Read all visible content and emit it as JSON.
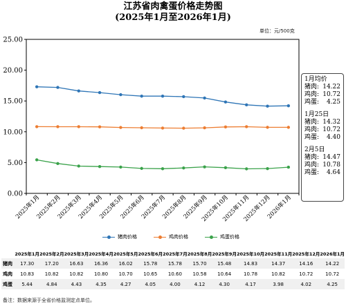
{
  "page": {
    "title_line1": "江苏省肉禽蛋价格走势图",
    "title_line2": "(2025年1月至2026年1月)",
    "unit": "单位：元/500克",
    "footnote": "备注：数据来源于全省价格监测定点单位。"
  },
  "sidebox": {
    "groups": [
      {
        "heading": "1月均价",
        "rows": [
          {
            "label": "猪肉:",
            "value": "14.22"
          },
          {
            "label": "鸡肉:",
            "value": "10.72"
          },
          {
            "label": "鸡蛋:",
            "value": "4.25"
          }
        ]
      },
      {
        "heading": "1月25日",
        "rows": [
          {
            "label": "猪肉:",
            "value": "14.32"
          },
          {
            "label": "鸡肉:",
            "value": "10.72"
          },
          {
            "label": "鸡蛋:",
            "value": "4.40"
          }
        ]
      },
      {
        "heading": "2月5日",
        "rows": [
          {
            "label": "猪肉:",
            "value": "14.47"
          },
          {
            "label": "鸡肉:",
            "value": "10.78"
          },
          {
            "label": "鸡蛋:",
            "value": "4.64"
          }
        ]
      }
    ]
  },
  "table": {
    "row_labels": [
      "猪肉",
      "鸡肉",
      "鸡蛋"
    ]
  },
  "chart_data": {
    "type": "line",
    "title": "江苏省肉禽蛋价格走势图",
    "subtitle": "(2025年1月至2026年1月)",
    "ylim": [
      0,
      25
    ],
    "yticks": [
      0,
      5,
      10,
      15,
      20,
      25
    ],
    "ytick_labels": [
      "0.00",
      "5.00",
      "10.00",
      "15.00",
      "20.00",
      "25.00"
    ],
    "grid": false,
    "legend_position": "bottom",
    "categories": [
      "2025年1月",
      "2025年2月",
      "2025年3月",
      "2025年4月",
      "2025年5月",
      "2025年6月",
      "2025年7月",
      "2025年8月",
      "2025年9月",
      "2025年10月",
      "2025年11月",
      "2025年12月",
      "2026年1月"
    ],
    "series": [
      {
        "name": "猪肉价格",
        "color": "#2e75b6",
        "values": [
          17.3,
          17.2,
          16.63,
          16.36,
          16.02,
          15.78,
          15.78,
          15.7,
          15.48,
          14.83,
          14.37,
          14.16,
          14.22
        ]
      },
      {
        "name": "鸡肉价格",
        "color": "#ed7d31",
        "values": [
          10.83,
          10.82,
          10.82,
          10.8,
          10.7,
          10.65,
          10.6,
          10.58,
          10.64,
          10.78,
          10.82,
          10.72,
          10.72
        ]
      },
      {
        "name": "鸡蛋价格",
        "color": "#3aa24a",
        "values": [
          5.44,
          4.84,
          4.43,
          4.35,
          4.27,
          4.05,
          4.0,
          4.12,
          4.3,
          4.17,
          3.98,
          4.02,
          4.25
        ]
      }
    ]
  }
}
